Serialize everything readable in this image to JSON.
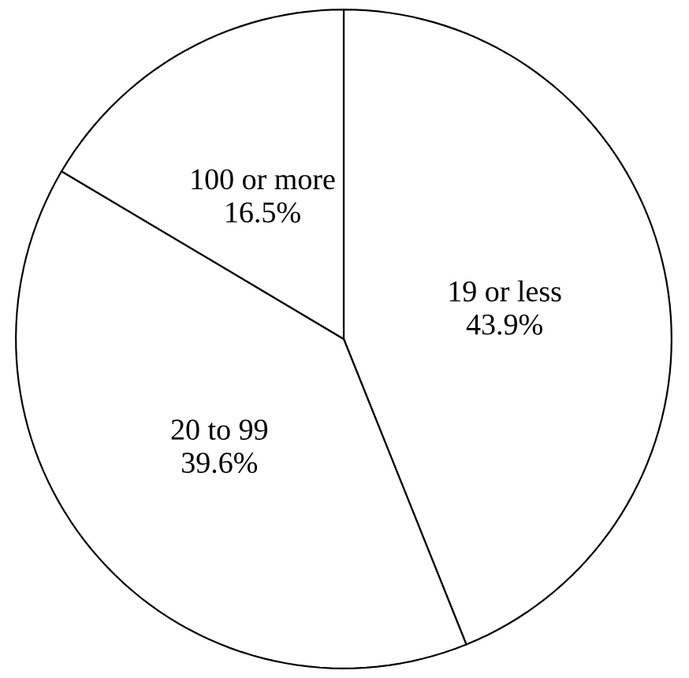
{
  "chart_data": {
    "type": "pie",
    "categories": [
      "19 or less",
      "20 to 99",
      "100 or more"
    ],
    "values": [
      43.9,
      39.6,
      16.5
    ],
    "value_labels": [
      "43.9%",
      "39.6%",
      "16.5%"
    ],
    "colors": [
      "#ffffff",
      "#ffffff",
      "#ffffff"
    ]
  }
}
